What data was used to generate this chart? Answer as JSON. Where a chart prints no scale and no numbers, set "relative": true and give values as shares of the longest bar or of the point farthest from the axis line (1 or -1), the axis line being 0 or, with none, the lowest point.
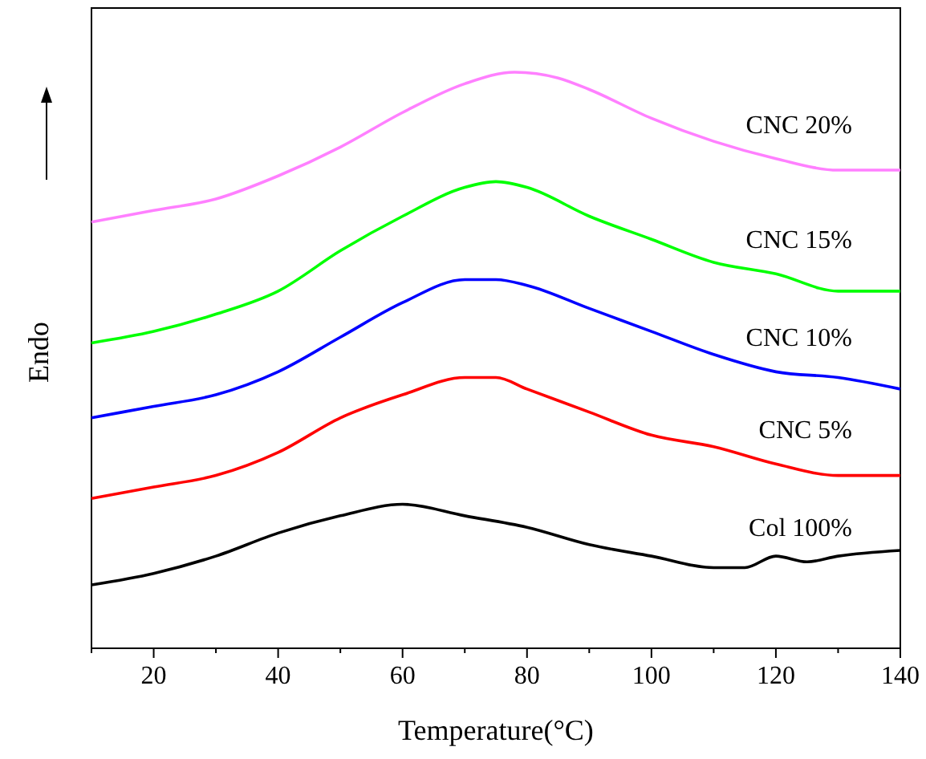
{
  "chart_data": {
    "type": "line",
    "relative": true,
    "xlabel": "Temperature(°C)",
    "ylabel": "Endo",
    "xlim": [
      10,
      140
    ],
    "xticks": [
      20,
      40,
      60,
      80,
      100,
      120,
      140
    ],
    "tick_labels": "x",
    "grid": false,
    "line_style": "solid",
    "series": [
      {
        "name": "Col 100%",
        "color": "#000000",
        "x": [
          10,
          20,
          30,
          40,
          50,
          60,
          70,
          80,
          90,
          100,
          110,
          115,
          120,
          125,
          130,
          140
        ],
        "values": [
          0.11,
          0.13,
          0.16,
          0.2,
          0.23,
          0.25,
          0.23,
          0.21,
          0.18,
          0.16,
          0.14,
          0.14,
          0.16,
          0.15,
          0.16,
          0.17
        ]
      },
      {
        "name": "CNC 5%",
        "color": "#ff0000",
        "x": [
          10,
          20,
          30,
          40,
          50,
          60,
          70,
          75,
          80,
          90,
          100,
          110,
          120,
          130,
          140
        ],
        "values": [
          0.26,
          0.28,
          0.3,
          0.34,
          0.4,
          0.44,
          0.47,
          0.47,
          0.45,
          0.41,
          0.37,
          0.35,
          0.32,
          0.3,
          0.3
        ]
      },
      {
        "name": "CNC 10%",
        "color": "#0000ff",
        "x": [
          10,
          20,
          30,
          40,
          50,
          60,
          70,
          75,
          80,
          90,
          100,
          110,
          120,
          130,
          140
        ],
        "values": [
          0.4,
          0.42,
          0.44,
          0.48,
          0.54,
          0.6,
          0.64,
          0.64,
          0.63,
          0.59,
          0.55,
          0.51,
          0.48,
          0.47,
          0.45
        ]
      },
      {
        "name": "CNC 15%",
        "color": "#00ff00",
        "x": [
          10,
          20,
          30,
          40,
          50,
          60,
          70,
          75,
          80,
          90,
          100,
          110,
          120,
          130,
          140
        ],
        "values": [
          0.53,
          0.55,
          0.58,
          0.62,
          0.69,
          0.75,
          0.8,
          0.81,
          0.8,
          0.75,
          0.71,
          0.67,
          0.65,
          0.62,
          0.62
        ]
      },
      {
        "name": "CNC 20%",
        "color": "#ff80ff",
        "x": [
          10,
          20,
          30,
          40,
          50,
          60,
          70,
          78,
          85,
          90,
          100,
          110,
          120,
          130,
          140
        ],
        "values": [
          0.74,
          0.76,
          0.78,
          0.82,
          0.87,
          0.93,
          0.98,
          1,
          0.99,
          0.97,
          0.92,
          0.88,
          0.85,
          0.83,
          0.83
        ]
      }
    ]
  }
}
